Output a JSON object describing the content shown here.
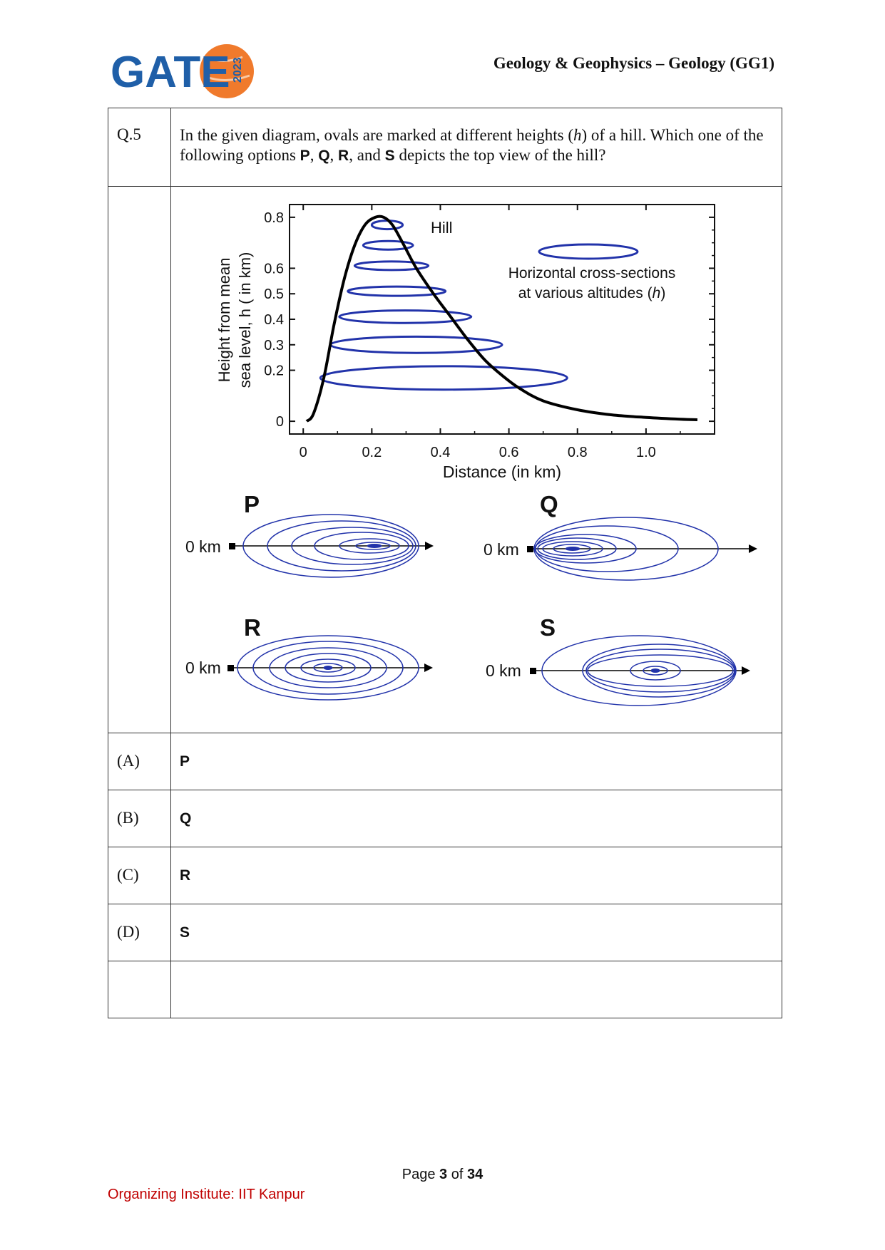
{
  "header": {
    "logo_text": "GATE",
    "logo_year": "2023",
    "title": "Geology & Geophysics – Geology (GG1)"
  },
  "question": {
    "number": "Q.5",
    "text_part1": "In the given diagram, ovals are marked at different heights (",
    "text_h": "h",
    "text_part2": ") of a hill. Which one of the following options ",
    "opt_P": "P",
    "sep1": ", ",
    "opt_Q": "Q",
    "sep2": ", ",
    "opt_R": "R",
    "sep3": ", and ",
    "opt_S": "S",
    "text_part3": " depicts the top view of the hill?"
  },
  "chart_data": {
    "type": "line",
    "title": "",
    "xlabel": "Distance (in km)",
    "ylabel_line1": "Height from mean",
    "ylabel_line2": "sea level, h ( in km)",
    "xlim": [
      -0.04,
      1.2
    ],
    "ylim": [
      -0.05,
      0.85
    ],
    "xticks": [
      "0",
      "0.2",
      "0.4",
      "0.6",
      "0.8",
      "1.0"
    ],
    "yticks": [
      "0",
      "0.2",
      "0.3",
      "0.4",
      "0.5",
      "0.6",
      "0.8"
    ],
    "series": [
      {
        "name": "Hill",
        "x": [
          0.01,
          0.03,
          0.06,
          0.09,
          0.12,
          0.15,
          0.18,
          0.21,
          0.235,
          0.26,
          0.29,
          0.33,
          0.38,
          0.43,
          0.48,
          0.53,
          0.58,
          0.63,
          0.7,
          0.8,
          0.9,
          1.0,
          1.1,
          1.15
        ],
        "y": [
          0.0,
          0.03,
          0.17,
          0.38,
          0.56,
          0.69,
          0.77,
          0.8,
          0.8,
          0.77,
          0.7,
          0.6,
          0.5,
          0.41,
          0.32,
          0.24,
          0.18,
          0.13,
          0.08,
          0.045,
          0.025,
          0.015,
          0.008,
          0.006
        ]
      }
    ],
    "cross_sections": [
      {
        "h": 0.77,
        "x_left": 0.2,
        "x_right": 0.29
      },
      {
        "h": 0.69,
        "x_left": 0.175,
        "x_right": 0.32
      },
      {
        "h": 0.61,
        "x_left": 0.15,
        "x_right": 0.365
      },
      {
        "h": 0.51,
        "x_left": 0.13,
        "x_right": 0.415
      },
      {
        "h": 0.41,
        "x_left": 0.105,
        "x_right": 0.49
      },
      {
        "h": 0.3,
        "x_left": 0.08,
        "x_right": 0.58
      },
      {
        "h": 0.17,
        "x_left": 0.05,
        "x_right": 0.77
      }
    ],
    "annotations": {
      "hill_label": "Hill",
      "legend_line1": "Horizontal cross-sections",
      "legend_line2_pre": "at various altitudes (",
      "legend_line2_h": "h",
      "legend_line2_post": ")"
    }
  },
  "options_diagram": {
    "zero_label": "0 km",
    "panels": [
      "P",
      "Q",
      "R",
      "S"
    ]
  },
  "options": [
    {
      "label": "(A)",
      "value": "P"
    },
    {
      "label": "(B)",
      "value": "Q"
    },
    {
      "label": "(C)",
      "value": "R"
    },
    {
      "label": "(D)",
      "value": "S"
    }
  ],
  "footer": {
    "page_prefix": "Page ",
    "page_current": "3",
    "page_of": " of ",
    "page_total": "34",
    "organizer": "Organizing Institute: IIT Kanpur"
  },
  "colors": {
    "logo_blue": "#1f5fa8",
    "logo_orange": "#f07a2c",
    "oval_blue": "#2233aa",
    "footer_red": "#c00000"
  }
}
